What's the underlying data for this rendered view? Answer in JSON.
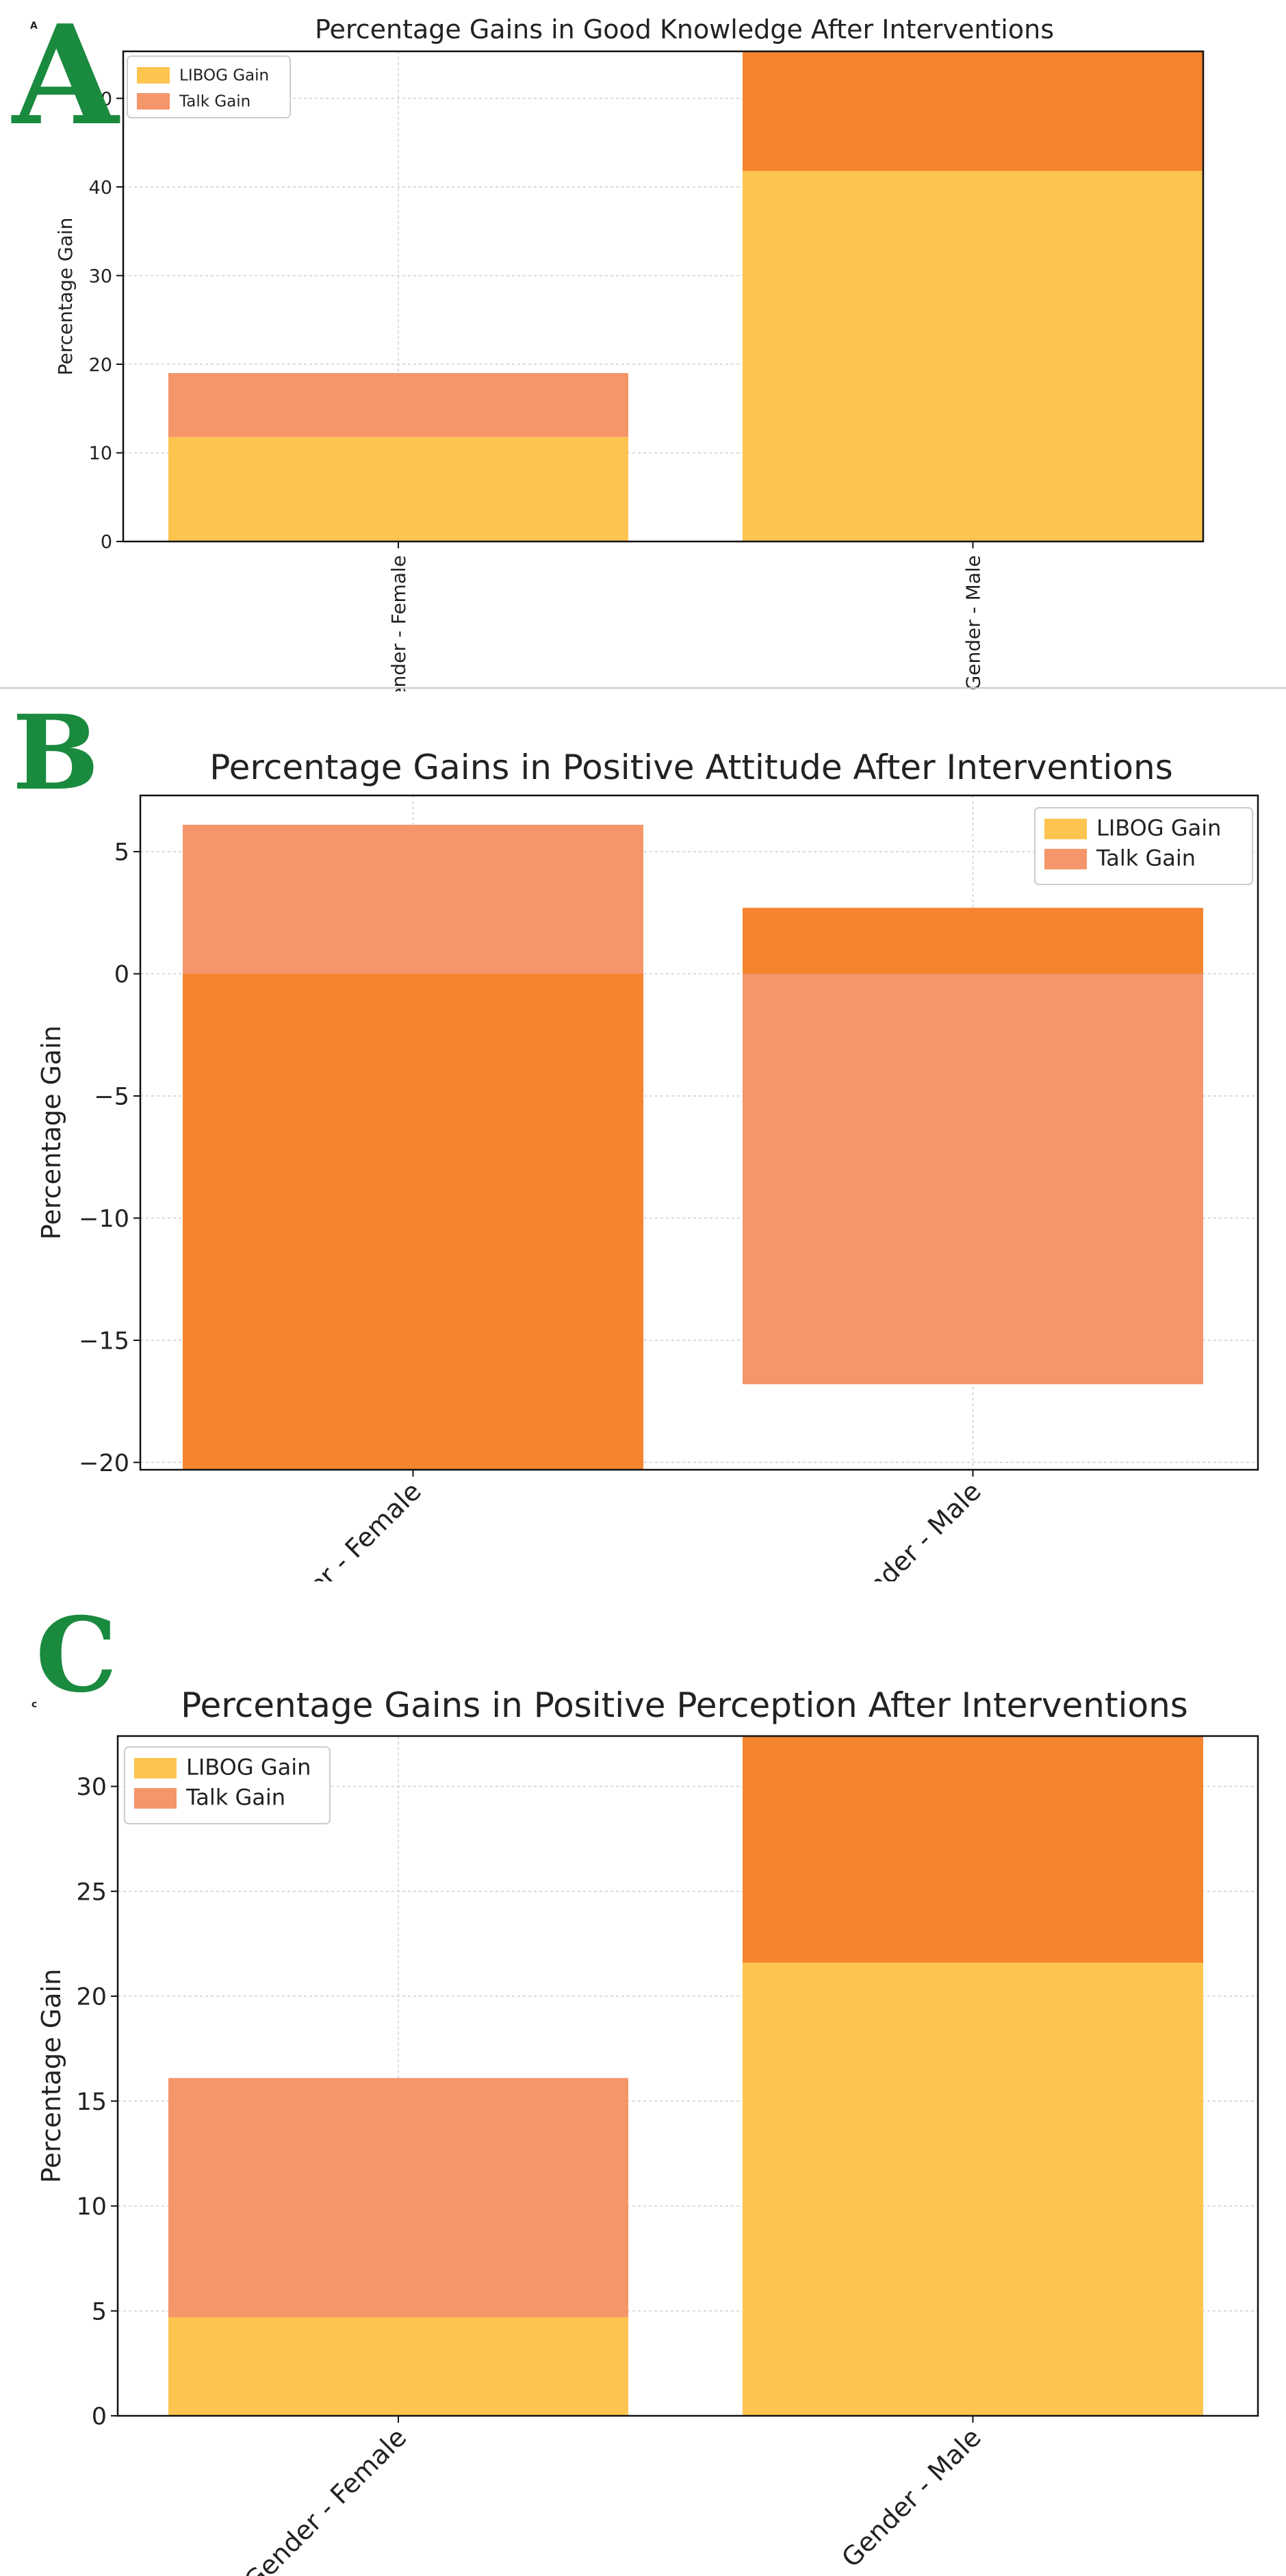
{
  "colors": {
    "libog": "#fdc44f",
    "talk": "#f5956a",
    "talk_dark": "#f5842f",
    "letter": "#1a8a3e"
  },
  "chart_data": [
    {
      "panel": "A",
      "type": "bar",
      "stacked": true,
      "title": "Percentage Gains in Good Knowledge After Interventions",
      "xlabel": "",
      "ylabel": "Percentage Gain",
      "categories": [
        "Gender - Female",
        "Gender - Male"
      ],
      "series": [
        {
          "name": "LIBOG Gain",
          "values": [
            11.8,
            41.8
          ]
        },
        {
          "name": "Talk Gain",
          "values": [
            7.2,
            13.5
          ]
        }
      ],
      "bar_colors": [
        [
          "libog",
          "libog"
        ],
        [
          "talk",
          "talk_dark"
        ]
      ],
      "ylim": [
        0,
        55.3
      ],
      "yticks": [
        0,
        10,
        20,
        30,
        40,
        50
      ],
      "grid": true,
      "legend": "top-left",
      "small_label": "A"
    },
    {
      "panel": "B",
      "type": "bar",
      "stacked": false,
      "title": "Percentage Gains in Positive Attitude After Interventions",
      "xlabel": "",
      "ylabel": "Percentage Gain",
      "categories": [
        "Gender - Female",
        "Gender - Male"
      ],
      "series": [
        {
          "name": "LIBOG Gain",
          "values": [
            -20.3,
            2.7
          ]
        },
        {
          "name": "Talk Gain",
          "values": [
            6.1,
            -16.8
          ]
        }
      ],
      "bar_colors": [
        [
          "talk_dark",
          "talk_dark"
        ],
        [
          "talk",
          "talk"
        ]
      ],
      "ylim": [
        -20.3,
        7.3
      ],
      "yticks": [
        -20,
        -15,
        -10,
        -5,
        0,
        5
      ],
      "grid": true,
      "legend": "top-right",
      "small_label": "B"
    },
    {
      "panel": "C",
      "type": "bar",
      "stacked": true,
      "title": "Percentage Gains in Positive Perception After Interventions",
      "xlabel": "",
      "ylabel": "Percentage Gain",
      "categories": [
        "Gender - Female",
        "Gender - Male"
      ],
      "series": [
        {
          "name": "LIBOG Gain",
          "values": [
            4.7,
            21.6
          ]
        },
        {
          "name": "Talk Gain",
          "values": [
            11.4,
            10.8
          ]
        }
      ],
      "bar_colors": [
        [
          "libog",
          "libog"
        ],
        [
          "talk",
          "talk_dark"
        ]
      ],
      "ylim": [
        0,
        32.4
      ],
      "yticks": [
        0,
        5,
        10,
        15,
        20,
        25,
        30
      ],
      "grid": true,
      "legend": "top-left",
      "small_label": "c"
    }
  ]
}
